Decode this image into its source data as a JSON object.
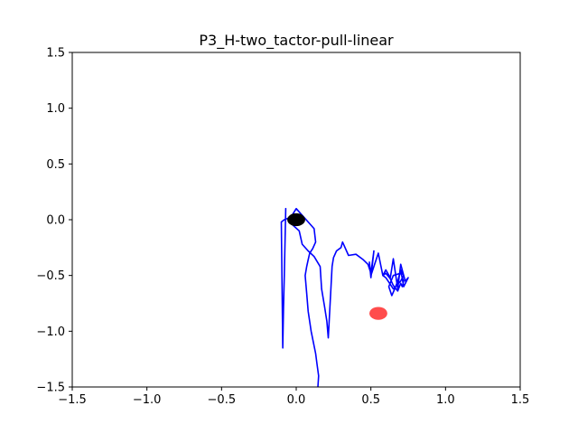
{
  "chart_data": {
    "type": "line",
    "title": "P3_H-two_tactor-pull-linear",
    "xlabel": "",
    "ylabel": "",
    "xlim": [
      -1.5,
      1.5
    ],
    "ylim": [
      -1.5,
      1.5
    ],
    "x_ticks": [
      -1.5,
      -1.0,
      -0.5,
      0.0,
      0.5,
      1.0,
      1.5
    ],
    "x_tick_labels": [
      "−1.5",
      "−1.0",
      "−0.5",
      "0.0",
      "0.5",
      "1.0",
      "1.5"
    ],
    "y_ticks": [
      1.5,
      1.0,
      0.5,
      0.0,
      -0.5,
      -1.0,
      -1.5
    ],
    "y_tick_labels": [
      "1.5",
      "1.0",
      "0.5",
      "0.0",
      "−0.5",
      "−1.0",
      "−1.5"
    ],
    "grid": false,
    "series": [
      {
        "color": "#0000ff",
        "x": [
          0.145,
          0.15,
          0.14,
          0.13,
          0.1,
          0.08,
          0.07,
          0.06,
          0.07,
          0.08,
          0.09,
          0.11,
          0.13,
          0.12,
          0.0,
          -0.05,
          -0.03,
          0.02,
          0.04,
          0.08,
          0.12,
          0.16,
          0.17,
          0.19,
          0.205,
          0.215,
          0.24,
          0.25,
          0.27,
          0.3,
          0.31,
          0.35,
          0.4,
          0.45,
          0.48,
          0.5,
          0.52,
          0.5,
          0.49,
          0.5,
          0.52,
          0.55,
          0.58,
          0.6,
          0.63,
          0.65,
          0.68,
          0.7,
          0.73,
          0.75,
          0.72,
          0.7,
          0.68,
          0.66,
          0.64,
          0.62,
          0.65,
          0.7,
          0.72,
          0.71,
          0.7,
          0.68,
          0.65,
          0.63,
          0.6,
          0.58,
          0.6,
          0.65,
          0.7,
          0.72,
          0.7
        ],
        "y": [
          -1.5,
          -1.4,
          -1.3,
          -1.2,
          -1.0,
          -0.82,
          -0.66,
          -0.5,
          -0.42,
          -0.36,
          -0.3,
          -0.26,
          -0.2,
          -0.08,
          0.1,
          -0.01,
          -0.04,
          -0.1,
          -0.22,
          -0.28,
          -0.33,
          -0.42,
          -0.62,
          -0.78,
          -0.91,
          -1.06,
          -0.42,
          -0.34,
          -0.28,
          -0.25,
          -0.2,
          -0.32,
          -0.31,
          -0.36,
          -0.4,
          -0.48,
          -0.28,
          -0.52,
          -0.38,
          -0.5,
          -0.42,
          -0.3,
          -0.5,
          -0.45,
          -0.52,
          -0.35,
          -0.62,
          -0.4,
          -0.55,
          -0.52,
          -0.6,
          -0.45,
          -0.55,
          -0.62,
          -0.68,
          -0.6,
          -0.5,
          -0.48,
          -0.55,
          -0.6,
          -0.57,
          -0.64,
          -0.59,
          -0.53,
          -0.48,
          -0.5,
          -0.52,
          -0.62,
          -0.55,
          -0.5,
          -0.45
        ]
      },
      {
        "color": "#0000ff",
        "x": [
          -0.07,
          -0.075,
          -0.08,
          -0.085,
          -0.09,
          -0.1,
          -0.08,
          -0.06,
          -0.03
        ],
        "y": [
          0.1,
          -0.2,
          -0.5,
          -0.8,
          -1.15,
          -0.02,
          0.0,
          0.01,
          0.03
        ]
      }
    ],
    "markers": [
      {
        "x": 0.0,
        "y": 0.0,
        "rx": 0.06,
        "ry": 0.058,
        "color": "#000000"
      },
      {
        "x": 0.55,
        "y": -0.84,
        "rx": 0.06,
        "ry": 0.058,
        "color": "#ff0000",
        "opacity": 0.7
      }
    ]
  }
}
